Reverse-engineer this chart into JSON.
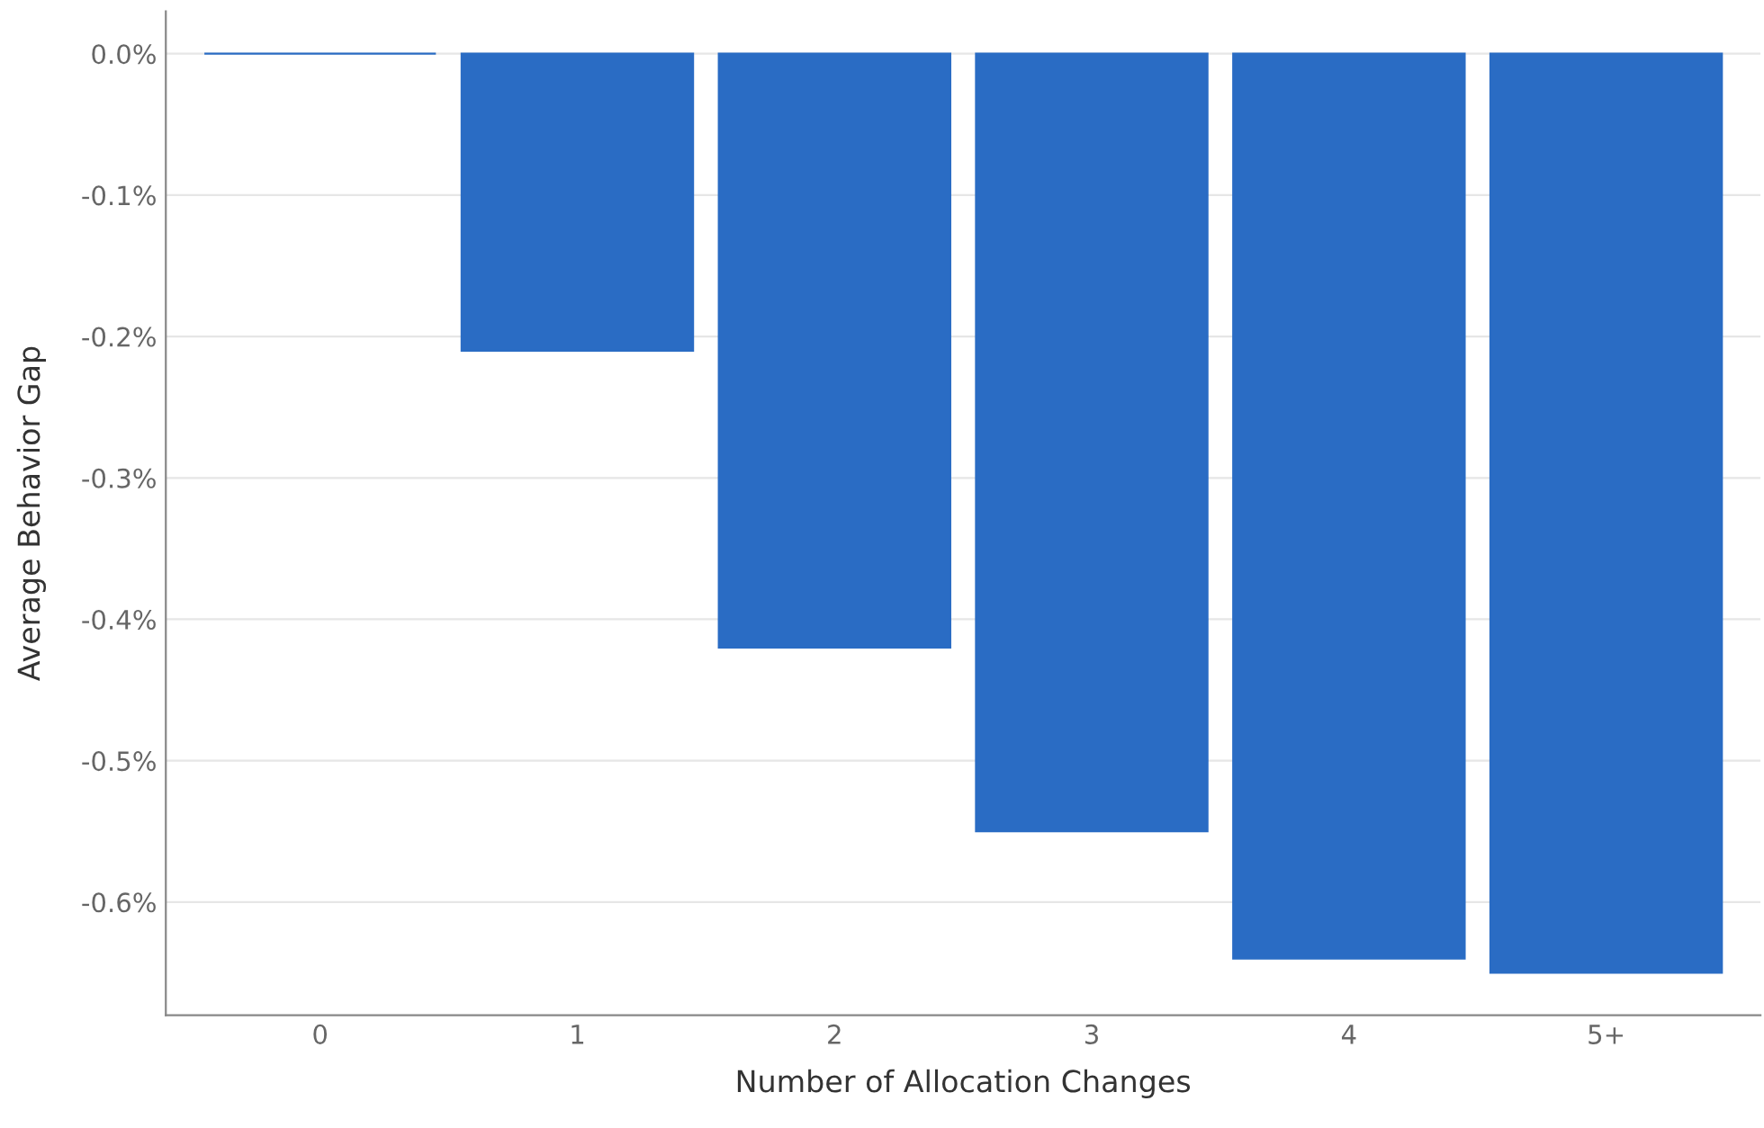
{
  "chart_data": {
    "type": "bar",
    "xlabel": "Number of Allocation Changes",
    "ylabel": "Average Behavior Gap",
    "categories": [
      "0",
      "1",
      "2",
      "3",
      "4",
      "5+"
    ],
    "values": [
      0,
      -0.21,
      -0.42,
      -0.55,
      -0.64,
      -0.65
    ],
    "color": "#2a6cc4",
    "ylim": [
      -0.68,
      0.03
    ],
    "yticks": [
      {
        "value": 0,
        "label": "0.0%"
      },
      {
        "value": -0.1,
        "label": "-0.1%"
      },
      {
        "value": -0.2,
        "label": "-0.2%"
      },
      {
        "value": -0.3,
        "label": "-0.3%"
      },
      {
        "value": -0.4,
        "label": "-0.4%"
      },
      {
        "value": -0.5,
        "label": "-0.5%"
      },
      {
        "value": -0.6,
        "label": "-0.6%"
      }
    ],
    "grid": "y",
    "legend": false
  }
}
